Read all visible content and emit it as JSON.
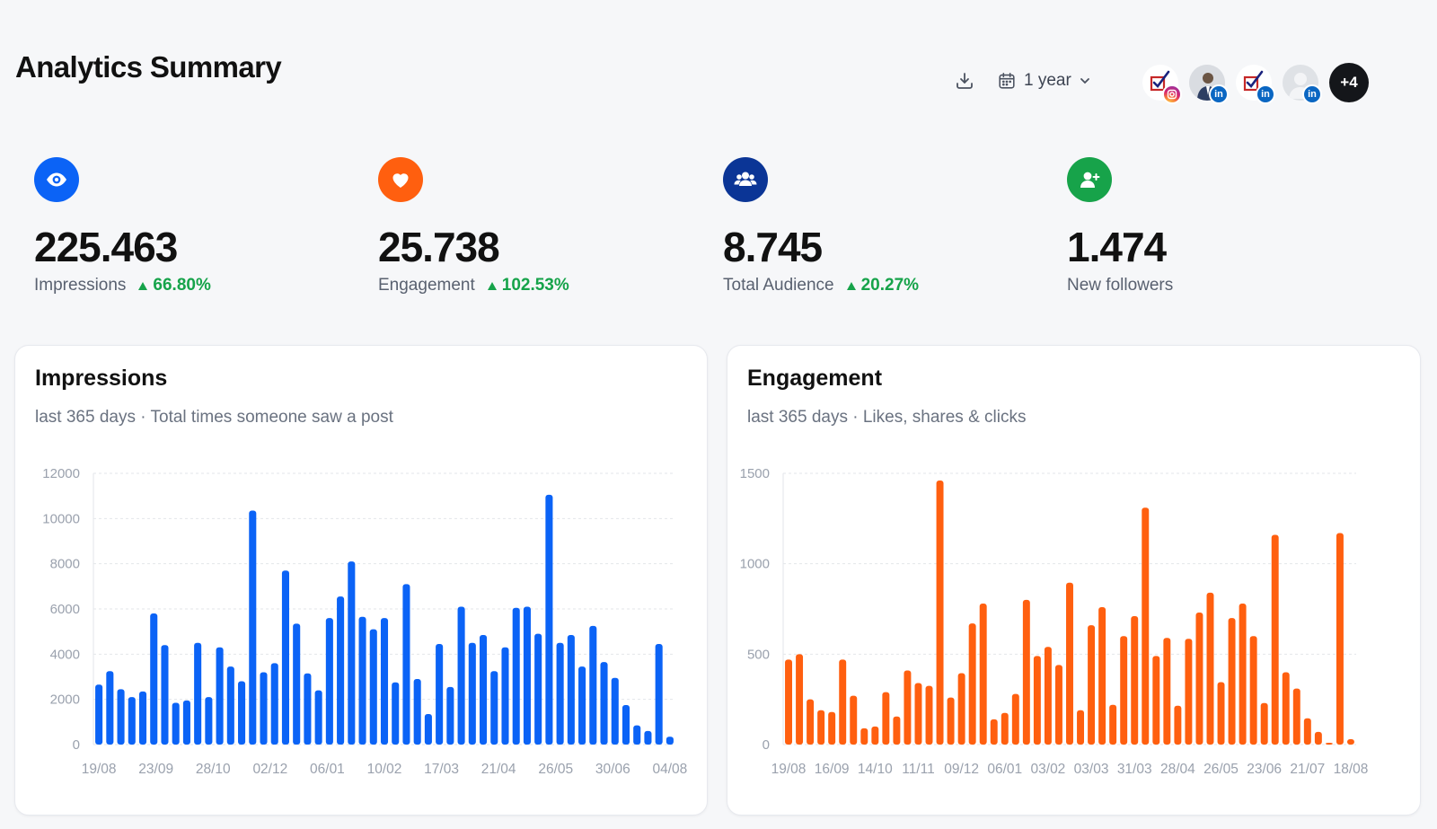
{
  "page": {
    "title": "Analytics Summary"
  },
  "toolbar": {
    "download_icon": "download-icon",
    "range": {
      "icon": "calendar-icon",
      "label": "1 year",
      "chevron": "chevron-down-icon"
    },
    "accounts": [
      {
        "kind": "logo",
        "network": "instagram",
        "badge_icon": "instagram-icon"
      },
      {
        "kind": "photo",
        "network": "linkedin",
        "badge": "in"
      },
      {
        "kind": "logo",
        "network": "linkedin",
        "badge": "in"
      },
      {
        "kind": "ghost",
        "network": "linkedin",
        "badge": "in"
      }
    ],
    "more_label": "+4"
  },
  "kpis": [
    {
      "icon": "eye-icon",
      "color": "#0b63f6",
      "value": "225.463",
      "label": "Impressions",
      "change": "66.80%"
    },
    {
      "icon": "heart-icon",
      "color": "#ff5f0f",
      "value": "25.738",
      "label": "Engagement",
      "change": "102.53%"
    },
    {
      "icon": "users-icon",
      "color": "#0b3596",
      "value": "8.745",
      "label": "Total Audience",
      "change": "20.27%"
    },
    {
      "icon": "user-plus-icon",
      "color": "#17a34a",
      "value": "1.474",
      "label": "New followers",
      "change": ""
    }
  ],
  "cards": {
    "impressions": {
      "title": "Impressions",
      "subtitle": "last 365 days · Total times someone saw a post"
    },
    "engagement": {
      "title": "Engagement",
      "subtitle": "last 365 days · Likes, shares & clicks"
    }
  },
  "chart_data": [
    {
      "type": "bar",
      "title": "Impressions",
      "color": "#0b63f6",
      "ylim": [
        0,
        12000
      ],
      "yticks": [
        0,
        2000,
        4000,
        6000,
        8000,
        10000,
        12000
      ],
      "xticks": [
        "19/08",
        "23/09",
        "28/10",
        "02/12",
        "06/01",
        "10/02",
        "17/03",
        "21/04",
        "26/05",
        "30/06",
        "04/08"
      ],
      "grid": true,
      "values": [
        2650,
        3250,
        2450,
        2100,
        2350,
        5800,
        4400,
        1850,
        1950,
        4500,
        2100,
        4300,
        3450,
        2800,
        10350,
        3200,
        3600,
        7700,
        5350,
        3150,
        2400,
        5600,
        6550,
        8100,
        5650,
        5100,
        5600,
        2750,
        7100,
        2900,
        1350,
        4450,
        2550,
        6100,
        4500,
        4850,
        3250,
        4300,
        6050,
        6100,
        4900,
        11050,
        4500,
        4850,
        3450,
        5250,
        3650,
        2950,
        1750,
        850,
        600,
        4450,
        350
      ]
    },
    {
      "type": "bar",
      "title": "Engagement",
      "color": "#ff5f0f",
      "ylim": [
        0,
        1500
      ],
      "yticks": [
        0,
        500,
        1000,
        1500
      ],
      "xticks": [
        "19/08",
        "16/09",
        "14/10",
        "11/11",
        "09/12",
        "06/01",
        "03/02",
        "03/03",
        "31/03",
        "28/04",
        "26/05",
        "23/06",
        "21/07",
        "18/08"
      ],
      "grid": true,
      "values": [
        470,
        500,
        250,
        190,
        180,
        470,
        270,
        90,
        100,
        290,
        155,
        410,
        340,
        325,
        1460,
        260,
        395,
        670,
        780,
        140,
        175,
        280,
        800,
        490,
        540,
        440,
        895,
        190,
        660,
        760,
        220,
        600,
        710,
        1310,
        490,
        590,
        215,
        585,
        730,
        840,
        345,
        700,
        780,
        600,
        230,
        1160,
        400,
        310,
        145,
        70,
        10,
        1170,
        30
      ]
    }
  ]
}
